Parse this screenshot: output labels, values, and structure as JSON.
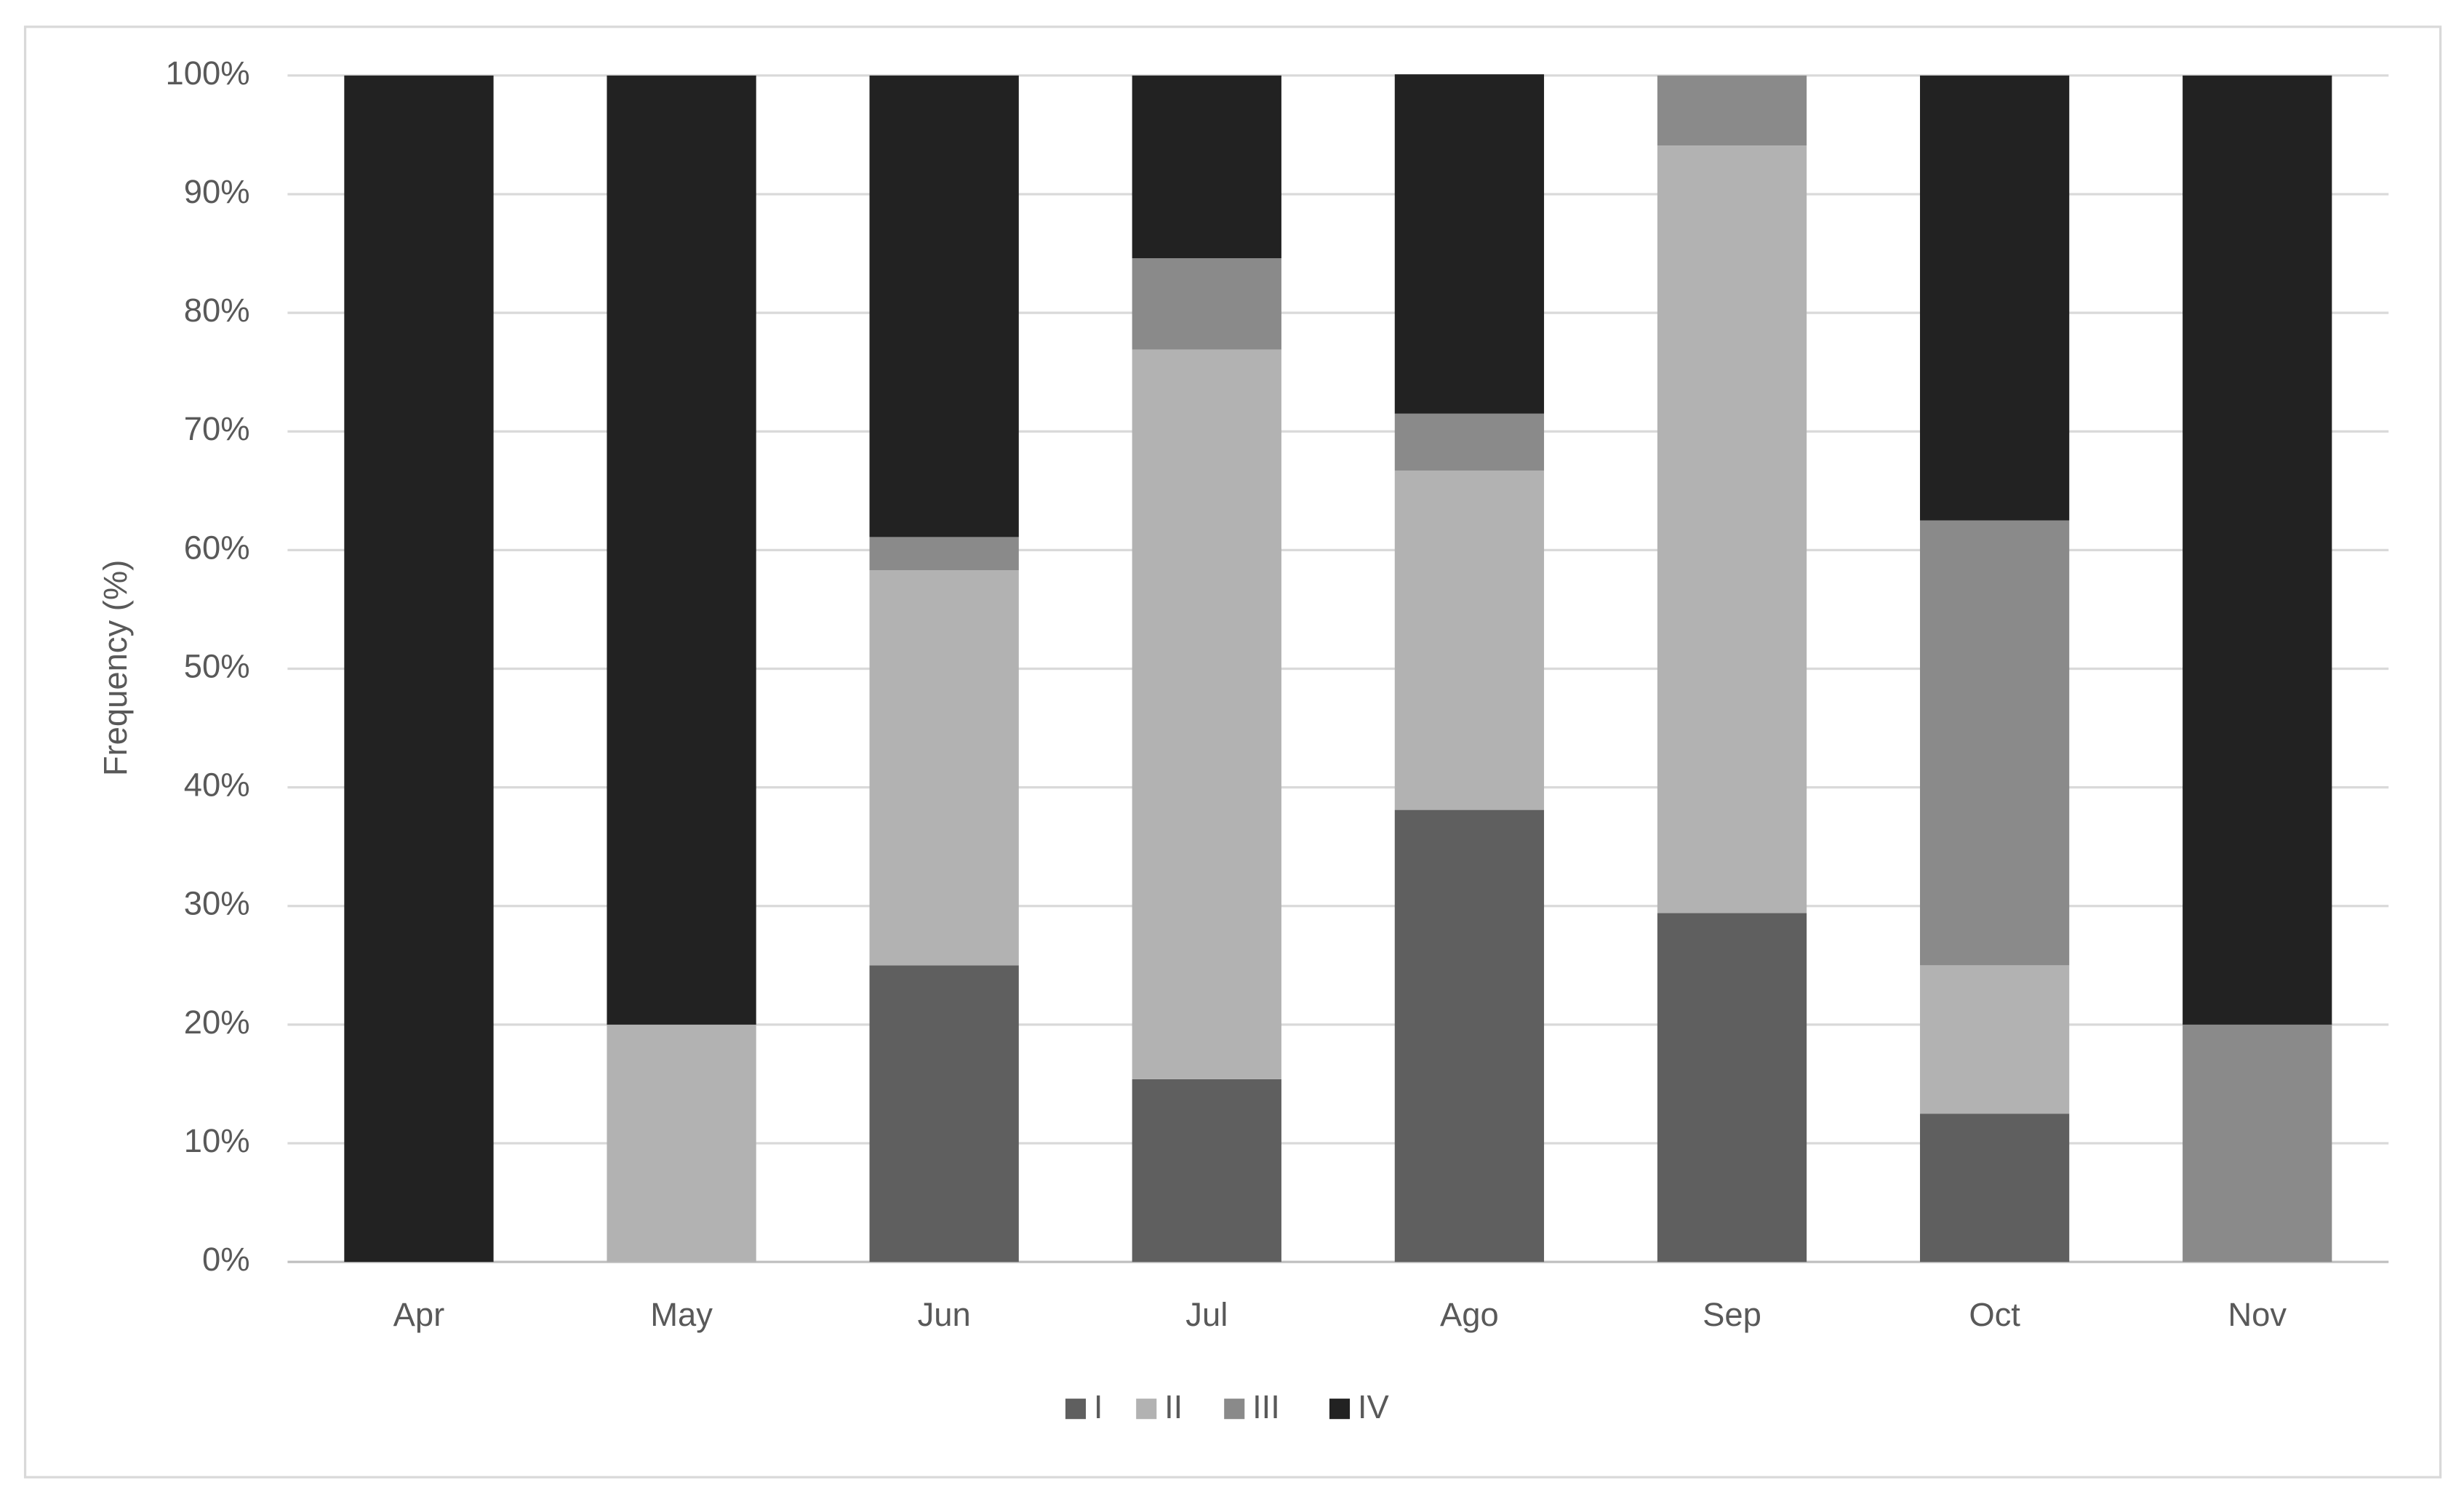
{
  "chart_data": {
    "type": "stacked_bar",
    "y_label": "Frequency (%)",
    "categories": [
      "Apr",
      "May",
      "Jun",
      "Jul",
      "Ago",
      "Sep",
      "Oct",
      "Nov"
    ],
    "series": [
      {
        "name": "I",
        "color": "#5f5f5f",
        "values": [
          0,
          0,
          25,
          15.4,
          38.1,
          29.4,
          12.5,
          0
        ]
      },
      {
        "name": "II",
        "color": "#b2b2b2",
        "values": [
          0,
          20,
          33.3,
          61.5,
          28.6,
          64.7,
          12.5,
          0
        ]
      },
      {
        "name": "III",
        "color": "#8a8a8a",
        "values": [
          0,
          0,
          2.8,
          7.7,
          4.8,
          5.9,
          37.5,
          20
        ]
      },
      {
        "name": "IV",
        "color": "#222222",
        "values": [
          100,
          80,
          38.9,
          15.4,
          28.6,
          0,
          37.5,
          80
        ]
      }
    ],
    "ylim": [
      0,
      100
    ],
    "yticks": [
      {
        "value": 0,
        "label": "0%"
      },
      {
        "value": 10,
        "label": "10%"
      },
      {
        "value": 20,
        "label": "20%"
      },
      {
        "value": 30,
        "label": "30%"
      },
      {
        "value": 40,
        "label": "40%"
      },
      {
        "value": 50,
        "label": "50%"
      },
      {
        "value": 60,
        "label": "60%"
      },
      {
        "value": 70,
        "label": "70%"
      },
      {
        "value": 80,
        "label": "80%"
      },
      {
        "value": 90,
        "label": "90%"
      },
      {
        "value": 100,
        "label": "100%"
      }
    ],
    "grid": true,
    "legend": "bottom"
  }
}
